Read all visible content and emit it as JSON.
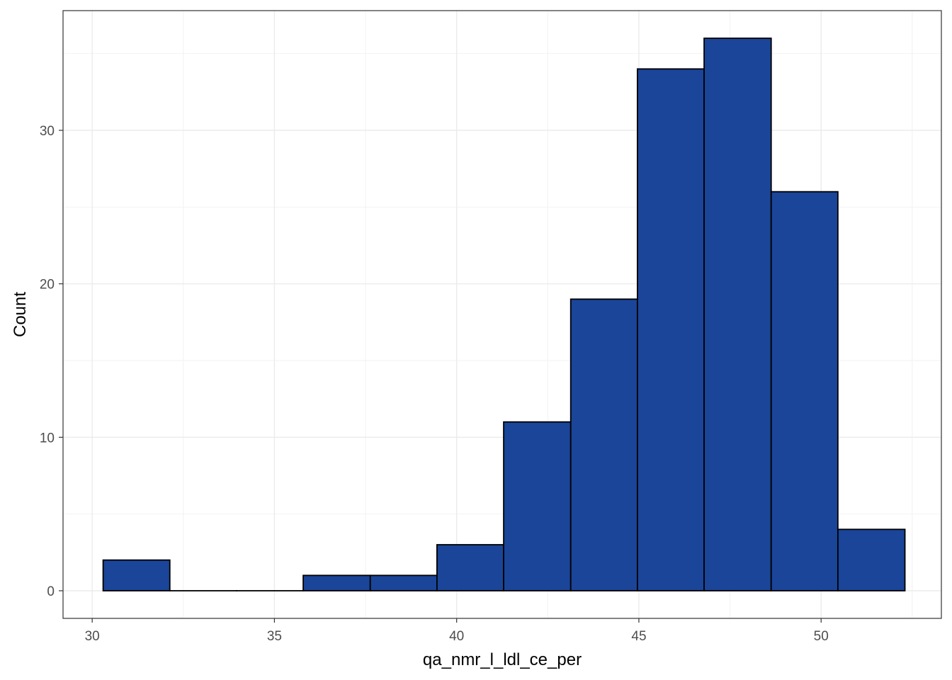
{
  "chart_data": {
    "type": "histogram",
    "title": "",
    "xlabel": "qa_nmr_l_ldl_ce_per",
    "ylabel": "Count",
    "xlim": [
      29.2,
      53.3
    ],
    "ylim": [
      -1.8,
      37.8
    ],
    "x_ticks": [
      30,
      35,
      40,
      45,
      50
    ],
    "y_ticks": [
      0,
      10,
      20,
      30
    ],
    "grid": true,
    "bar_color": "#1A4599",
    "bar_edge_color": "#000000",
    "bins": [
      {
        "x0": 30.3,
        "x1": 32.13,
        "count": 2
      },
      {
        "x0": 32.13,
        "x1": 33.96,
        "count": 0
      },
      {
        "x0": 33.96,
        "x1": 35.79,
        "count": 0
      },
      {
        "x0": 35.79,
        "x1": 37.63,
        "count": 1
      },
      {
        "x0": 37.63,
        "x1": 39.46,
        "count": 1
      },
      {
        "x0": 39.46,
        "x1": 41.29,
        "count": 3
      },
      {
        "x0": 41.29,
        "x1": 43.13,
        "count": 11
      },
      {
        "x0": 43.13,
        "x1": 44.96,
        "count": 19
      },
      {
        "x0": 44.96,
        "x1": 46.79,
        "count": 34
      },
      {
        "x0": 46.79,
        "x1": 48.63,
        "count": 36
      },
      {
        "x0": 48.63,
        "x1": 50.46,
        "count": 26
      },
      {
        "x0": 50.46,
        "x1": 52.3,
        "count": 4
      }
    ]
  }
}
